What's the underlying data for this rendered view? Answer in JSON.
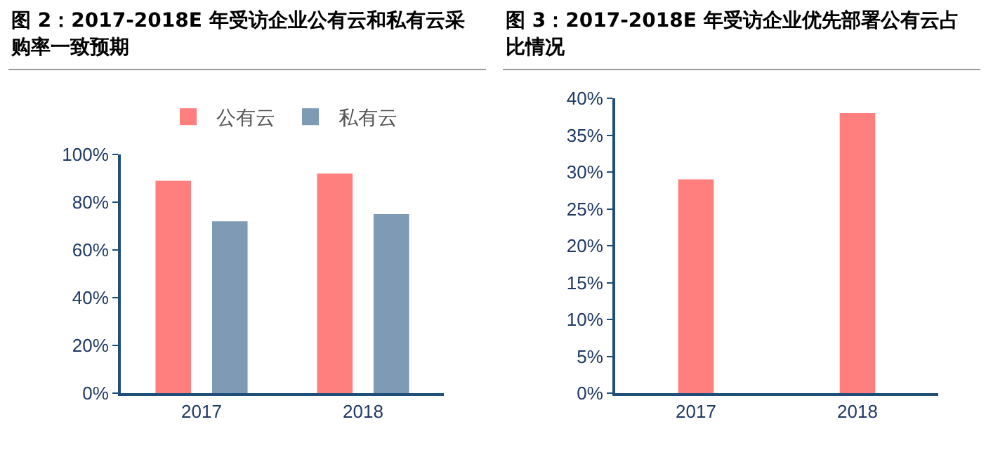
{
  "chart_data": [
    {
      "type": "bar",
      "title": "图 2：2017-2018E 年受访企业公有云和私有云采购率一致预期",
      "categories": [
        "2017",
        "2018"
      ],
      "series": [
        {
          "name": "公有云",
          "color": "#ff7f7f",
          "values": [
            89,
            92
          ]
        },
        {
          "name": "私有云",
          "color": "#7f9ab5",
          "values": [
            72,
            75
          ]
        }
      ],
      "ylim": [
        0,
        100
      ],
      "yticks": [
        {
          "value": 0,
          "label": "0%"
        },
        {
          "value": 20,
          "label": "20%"
        },
        {
          "value": 40,
          "label": "40%"
        },
        {
          "value": 60,
          "label": "60%"
        },
        {
          "value": 80,
          "label": "80%"
        },
        {
          "value": 100,
          "label": "100%"
        }
      ],
      "grid": false,
      "legend": "top"
    },
    {
      "type": "bar",
      "title": "图 3：2017-2018E 年受访企业优先部署公有云占比情况",
      "categories": [
        "2017",
        "2018"
      ],
      "series": [
        {
          "color": "#ff7f7f",
          "values": [
            29,
            38
          ]
        }
      ],
      "ylim": [
        0,
        40
      ],
      "yticks": [
        {
          "value": 0,
          "label": "0%"
        },
        {
          "value": 5,
          "label": "5%"
        },
        {
          "value": 10,
          "label": "10%"
        },
        {
          "value": 15,
          "label": "15%"
        },
        {
          "value": 20,
          "label": "20%"
        },
        {
          "value": 25,
          "label": "25%"
        },
        {
          "value": 30,
          "label": "30%"
        },
        {
          "value": 35,
          "label": "35%"
        },
        {
          "value": 40,
          "label": "40%"
        }
      ],
      "grid": false,
      "legend": false
    }
  ]
}
